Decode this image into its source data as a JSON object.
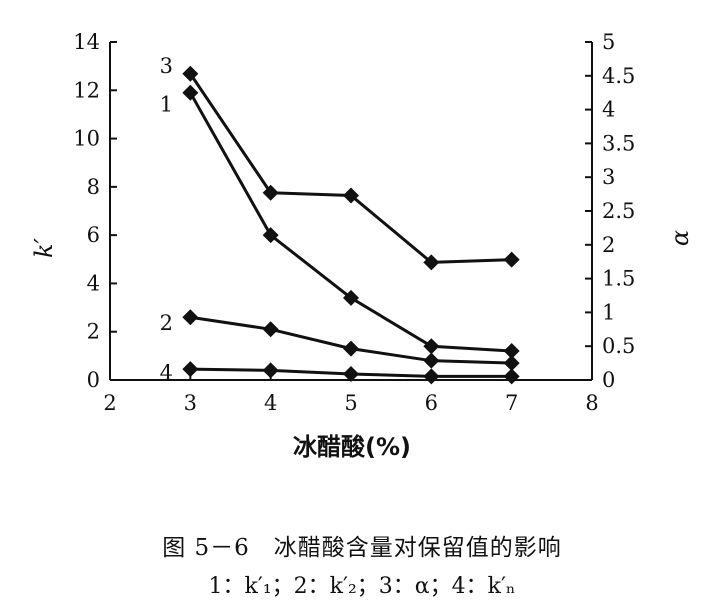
{
  "chart_data": {
    "type": "line",
    "xlabel": "冰醋酸(%)",
    "ylabel": "k′",
    "ylabel_right": "α",
    "xlim": [
      2,
      8
    ],
    "ylim": [
      0,
      14
    ],
    "ylim_right": [
      0,
      5
    ],
    "x_ticks": [
      "2",
      "3",
      "4",
      "5",
      "6",
      "7",
      "8"
    ],
    "y_ticks": [
      "0",
      "2",
      "4",
      "6",
      "8",
      "10",
      "12",
      "14"
    ],
    "y_right_ticks": [
      "0",
      "0.5",
      "1",
      "1.5",
      "2",
      "2.5",
      "3",
      "3.5",
      "4",
      "4.5",
      "5"
    ],
    "grid": false,
    "series": [
      {
        "name": "1",
        "axis": "left",
        "x": [
          3,
          4,
          5,
          6,
          7
        ],
        "values": [
          11.9,
          6.0,
          3.4,
          1.4,
          1.2
        ]
      },
      {
        "name": "2",
        "axis": "left",
        "x": [
          3,
          4,
          5,
          6,
          7
        ],
        "values": [
          2.6,
          2.1,
          1.3,
          0.8,
          0.7
        ]
      },
      {
        "name": "3",
        "axis": "right",
        "x": [
          3,
          4,
          5,
          6,
          7
        ],
        "values": [
          4.53,
          2.77,
          2.73,
          1.74,
          1.78
        ]
      },
      {
        "name": "4",
        "axis": "left",
        "x": [
          3,
          4,
          5,
          6,
          7
        ],
        "values": [
          0.45,
          0.4,
          0.25,
          0.15,
          0.15
        ]
      }
    ]
  },
  "caption": {
    "title": "图 5－6　冰醋酸含量对保留值的影响",
    "legend": "1：k′₁；2：k′₂；3：α；4：k′ₙ"
  }
}
